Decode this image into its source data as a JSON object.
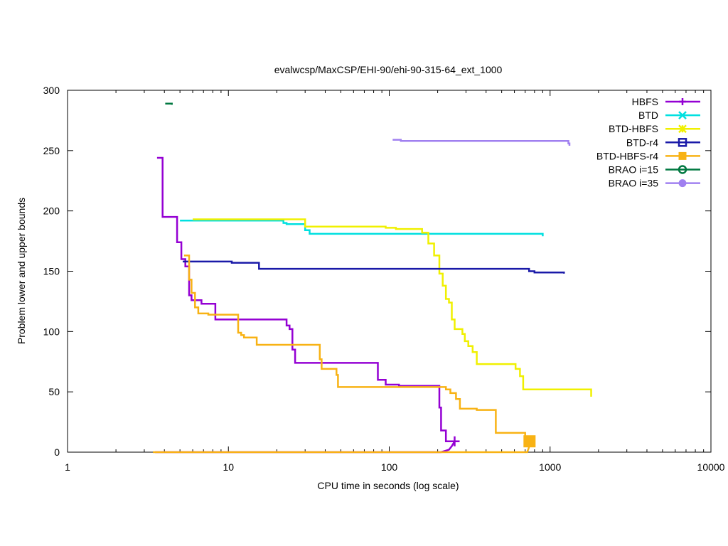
{
  "chart_data": {
    "type": "line",
    "title": "evalwcsp/MaxCSP/EHI-90/ehi-90-315-64_ext_1000",
    "xlabel": "CPU time in seconds (log scale)",
    "ylabel": "Problem lower and upper bounds",
    "xscale": "log",
    "xlim": [
      1,
      10000
    ],
    "ylim": [
      0,
      300
    ],
    "x_ticks": [
      1,
      10,
      100,
      1000,
      10000
    ],
    "x_tick_labels": [
      "1",
      "10",
      "100",
      "1000",
      "10000"
    ],
    "y_ticks": [
      0,
      50,
      100,
      150,
      200,
      250,
      300
    ],
    "y_tick_labels": [
      "0",
      "50",
      "100",
      "150",
      "200",
      "250",
      "300"
    ],
    "grid": false,
    "legend_position": "top-right",
    "series": [
      {
        "name": "HBFS",
        "color": "#9400d3",
        "marker": "plus",
        "upper": [
          [
            3.6,
            244
          ],
          [
            3.9,
            244
          ],
          [
            3.9,
            195
          ],
          [
            4.8,
            195
          ],
          [
            4.8,
            174
          ],
          [
            5.1,
            174
          ],
          [
            5.1,
            160
          ],
          [
            5.4,
            160
          ],
          [
            5.4,
            154
          ],
          [
            5.7,
            154
          ],
          [
            5.7,
            130
          ],
          [
            5.9,
            130
          ],
          [
            5.9,
            126
          ],
          [
            6.8,
            126
          ],
          [
            6.8,
            123
          ],
          [
            8.3,
            123
          ],
          [
            8.3,
            110
          ],
          [
            23,
            110
          ],
          [
            23,
            105
          ],
          [
            24,
            105
          ],
          [
            24,
            102
          ],
          [
            25,
            102
          ],
          [
            25,
            85
          ],
          [
            26,
            85
          ],
          [
            26,
            74
          ],
          [
            85,
            74
          ],
          [
            85,
            60
          ],
          [
            95,
            60
          ],
          [
            95,
            56
          ],
          [
            115,
            56
          ],
          [
            115,
            55
          ],
          [
            205,
            55
          ],
          [
            205,
            37
          ],
          [
            210,
            37
          ],
          [
            210,
            18
          ],
          [
            225,
            18
          ],
          [
            225,
            9
          ],
          [
            255,
            9
          ]
        ],
        "lower": [
          [
            3.5,
            0
          ],
          [
            210,
            0
          ],
          [
            235,
            2
          ],
          [
            245,
            5
          ],
          [
            255,
            9
          ]
        ],
        "markers": [
          [
            255,
            9
          ]
        ]
      },
      {
        "name": "BTD",
        "color": "#00e0e0",
        "marker": "x",
        "upper": [
          [
            5.0,
            192
          ],
          [
            22,
            192
          ],
          [
            22,
            190
          ],
          [
            23,
            190
          ],
          [
            23,
            189
          ],
          [
            30,
            189
          ],
          [
            30,
            184
          ],
          [
            32,
            184
          ],
          [
            32,
            181
          ],
          [
            900,
            181
          ],
          [
            900,
            179
          ]
        ],
        "lower": [],
        "markers": []
      },
      {
        "name": "BTD-HBFS",
        "color": "#f0f000",
        "marker": "star",
        "upper": [
          [
            6.0,
            193
          ],
          [
            30,
            193
          ],
          [
            30,
            187
          ],
          [
            95,
            187
          ],
          [
            95,
            186
          ],
          [
            110,
            186
          ],
          [
            110,
            185
          ],
          [
            160,
            185
          ],
          [
            160,
            182
          ],
          [
            175,
            182
          ],
          [
            175,
            173
          ],
          [
            190,
            173
          ],
          [
            190,
            163
          ],
          [
            205,
            163
          ],
          [
            205,
            148
          ],
          [
            215,
            148
          ],
          [
            215,
            138
          ],
          [
            225,
            138
          ],
          [
            225,
            127
          ],
          [
            235,
            127
          ],
          [
            235,
            124
          ],
          [
            245,
            124
          ],
          [
            245,
            110
          ],
          [
            255,
            110
          ],
          [
            255,
            102
          ],
          [
            285,
            102
          ],
          [
            285,
            98
          ],
          [
            295,
            98
          ],
          [
            295,
            92
          ],
          [
            310,
            92
          ],
          [
            310,
            88
          ],
          [
            330,
            88
          ],
          [
            330,
            83
          ],
          [
            350,
            83
          ],
          [
            350,
            73
          ],
          [
            610,
            73
          ],
          [
            610,
            69
          ],
          [
            650,
            69
          ],
          [
            650,
            63
          ],
          [
            680,
            63
          ],
          [
            680,
            52
          ],
          [
            1800,
            52
          ],
          [
            1800,
            46
          ]
        ],
        "lower": [],
        "markers": []
      },
      {
        "name": "BTD-r4",
        "color": "#1a1aa8",
        "marker": "square",
        "upper": [
          [
            5.2,
            158
          ],
          [
            10.5,
            158
          ],
          [
            10.5,
            157
          ],
          [
            15.5,
            157
          ],
          [
            15.5,
            152
          ],
          [
            740,
            152
          ],
          [
            740,
            150
          ],
          [
            800,
            150
          ],
          [
            800,
            149
          ],
          [
            1220,
            149
          ],
          [
            1220,
            148
          ]
        ],
        "lower": [],
        "markers": []
      },
      {
        "name": "BTD-HBFS-r4",
        "color": "#f8b214",
        "marker": "filled-square",
        "upper": [
          [
            5.3,
            163
          ],
          [
            5.7,
            163
          ],
          [
            5.7,
            143
          ],
          [
            5.9,
            143
          ],
          [
            5.9,
            132
          ],
          [
            6.2,
            132
          ],
          [
            6.2,
            120
          ],
          [
            6.5,
            120
          ],
          [
            6.5,
            115
          ],
          [
            7.5,
            115
          ],
          [
            7.5,
            114
          ],
          [
            11.5,
            114
          ],
          [
            11.5,
            99
          ],
          [
            12,
            99
          ],
          [
            12,
            97
          ],
          [
            12.5,
            97
          ],
          [
            12.5,
            95
          ],
          [
            15,
            95
          ],
          [
            15,
            89
          ],
          [
            37,
            89
          ],
          [
            37,
            77
          ],
          [
            38,
            77
          ],
          [
            38,
            69
          ],
          [
            47,
            69
          ],
          [
            47,
            64
          ],
          [
            48,
            64
          ],
          [
            48,
            54
          ],
          [
            225,
            54
          ],
          [
            225,
            52
          ],
          [
            240,
            52
          ],
          [
            240,
            49
          ],
          [
            260,
            49
          ],
          [
            260,
            44
          ],
          [
            275,
            44
          ],
          [
            275,
            36
          ],
          [
            350,
            36
          ],
          [
            350,
            35
          ],
          [
            460,
            35
          ],
          [
            460,
            16
          ],
          [
            700,
            16
          ],
          [
            700,
            9
          ],
          [
            760,
            9
          ]
        ],
        "lower": [
          [
            3.4,
            0
          ],
          [
            720,
            0
          ],
          [
            735,
            3
          ],
          [
            745,
            6
          ],
          [
            760,
            9
          ]
        ],
        "markers": [
          [
            745,
            9
          ]
        ]
      },
      {
        "name": "BRAO i=15",
        "color": "#007840",
        "marker": "circle",
        "upper": [
          [
            4.05,
            289
          ],
          [
            4.45,
            289
          ],
          [
            4.45,
            288
          ]
        ],
        "lower": [],
        "markers": []
      },
      {
        "name": "BRAO i=35",
        "color": "#a080f0",
        "marker": "filled-circle",
        "upper": [
          [
            105,
            259
          ],
          [
            118,
            259
          ],
          [
            118,
            258
          ],
          [
            1300,
            258
          ],
          [
            1300,
            256
          ],
          [
            1320,
            256
          ],
          [
            1320,
            254
          ]
        ],
        "lower": [],
        "markers": []
      }
    ]
  }
}
